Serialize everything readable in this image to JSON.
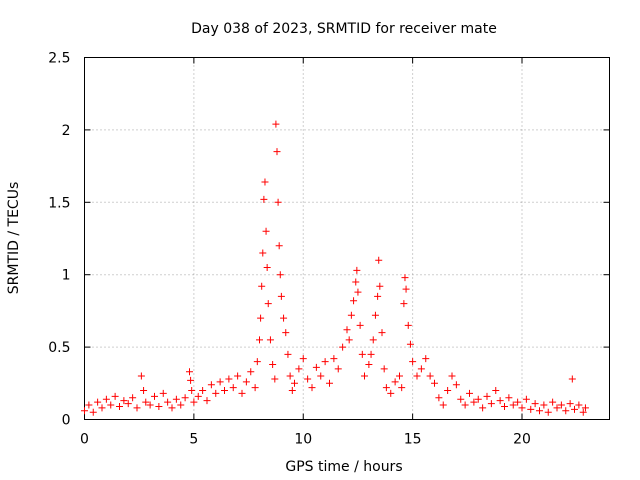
{
  "chart_data": {
    "type": "scatter",
    "title": "Day 038 of 2023, SRMTID for receiver mate",
    "xlabel": "GPS time / hours",
    "ylabel": "SRMTID / TECUs",
    "xlim": [
      0,
      24
    ],
    "ylim": [
      0,
      2.5
    ],
    "xticks": [
      {
        "value": 0,
        "label": "0"
      },
      {
        "value": 5,
        "label": "5"
      },
      {
        "value": 10,
        "label": "10"
      },
      {
        "value": 15,
        "label": "15"
      },
      {
        "value": 20,
        "label": "20"
      }
    ],
    "yticks": [
      {
        "value": 0,
        "label": "0"
      },
      {
        "value": 0.5,
        "label": "0.5"
      },
      {
        "value": 1,
        "label": "1"
      },
      {
        "value": 1.5,
        "label": "1.5"
      },
      {
        "value": 2,
        "label": "2"
      },
      {
        "value": 2.5,
        "label": "2.5"
      }
    ],
    "grid": true,
    "marker": "+",
    "series": [
      {
        "name": "SRMTID",
        "color": "#ff0000",
        "points": [
          [
            0.0,
            0.06
          ],
          [
            0.2,
            0.1
          ],
          [
            0.4,
            0.05
          ],
          [
            0.6,
            0.12
          ],
          [
            0.8,
            0.08
          ],
          [
            1.0,
            0.14
          ],
          [
            1.2,
            0.1
          ],
          [
            1.4,
            0.16
          ],
          [
            1.6,
            0.09
          ],
          [
            1.8,
            0.13
          ],
          [
            2.0,
            0.11
          ],
          [
            2.2,
            0.15
          ],
          [
            2.4,
            0.08
          ],
          [
            2.6,
            0.3
          ],
          [
            2.7,
            0.2
          ],
          [
            2.8,
            0.12
          ],
          [
            3.0,
            0.1
          ],
          [
            3.2,
            0.16
          ],
          [
            3.4,
            0.09
          ],
          [
            3.6,
            0.18
          ],
          [
            3.8,
            0.12
          ],
          [
            4.0,
            0.08
          ],
          [
            4.2,
            0.14
          ],
          [
            4.4,
            0.1
          ],
          [
            4.6,
            0.15
          ],
          [
            4.8,
            0.33
          ],
          [
            4.85,
            0.27
          ],
          [
            4.9,
            0.2
          ],
          [
            5.0,
            0.12
          ],
          [
            5.2,
            0.16
          ],
          [
            5.4,
            0.2
          ],
          [
            5.6,
            0.13
          ],
          [
            5.8,
            0.24
          ],
          [
            6.0,
            0.18
          ],
          [
            6.2,
            0.26
          ],
          [
            6.4,
            0.2
          ],
          [
            6.6,
            0.28
          ],
          [
            6.8,
            0.22
          ],
          [
            7.0,
            0.3
          ],
          [
            7.2,
            0.18
          ],
          [
            7.4,
            0.26
          ],
          [
            7.6,
            0.33
          ],
          [
            7.8,
            0.22
          ],
          [
            7.9,
            0.4
          ],
          [
            8.0,
            0.55
          ],
          [
            8.05,
            0.7
          ],
          [
            8.1,
            0.92
          ],
          [
            8.15,
            1.15
          ],
          [
            8.2,
            1.52
          ],
          [
            8.25,
            1.64
          ],
          [
            8.3,
            1.3
          ],
          [
            8.35,
            1.05
          ],
          [
            8.4,
            0.8
          ],
          [
            8.5,
            0.55
          ],
          [
            8.6,
            0.38
          ],
          [
            8.7,
            0.28
          ],
          [
            8.75,
            2.04
          ],
          [
            8.8,
            1.85
          ],
          [
            8.85,
            1.5
          ],
          [
            8.9,
            1.2
          ],
          [
            8.95,
            1.0
          ],
          [
            9.0,
            0.85
          ],
          [
            9.1,
            0.7
          ],
          [
            9.2,
            0.6
          ],
          [
            9.3,
            0.45
          ],
          [
            9.4,
            0.3
          ],
          [
            9.5,
            0.2
          ],
          [
            9.6,
            0.25
          ],
          [
            9.8,
            0.35
          ],
          [
            10.0,
            0.42
          ],
          [
            10.2,
            0.28
          ],
          [
            10.4,
            0.22
          ],
          [
            10.6,
            0.36
          ],
          [
            10.8,
            0.3
          ],
          [
            11.0,
            0.4
          ],
          [
            11.2,
            0.25
          ],
          [
            11.4,
            0.42
          ],
          [
            11.6,
            0.35
          ],
          [
            11.8,
            0.5
          ],
          [
            12.0,
            0.62
          ],
          [
            12.1,
            0.55
          ],
          [
            12.2,
            0.72
          ],
          [
            12.3,
            0.82
          ],
          [
            12.4,
            0.95
          ],
          [
            12.45,
            1.03
          ],
          [
            12.5,
            0.88
          ],
          [
            12.6,
            0.65
          ],
          [
            12.7,
            0.45
          ],
          [
            12.8,
            0.3
          ],
          [
            13.0,
            0.38
          ],
          [
            13.1,
            0.45
          ],
          [
            13.2,
            0.55
          ],
          [
            13.3,
            0.72
          ],
          [
            13.4,
            0.85
          ],
          [
            13.45,
            1.1
          ],
          [
            13.5,
            0.92
          ],
          [
            13.6,
            0.6
          ],
          [
            13.7,
            0.35
          ],
          [
            13.8,
            0.22
          ],
          [
            14.0,
            0.18
          ],
          [
            14.2,
            0.26
          ],
          [
            14.4,
            0.3
          ],
          [
            14.5,
            0.22
          ],
          [
            14.6,
            0.8
          ],
          [
            14.65,
            0.98
          ],
          [
            14.7,
            0.9
          ],
          [
            14.8,
            0.65
          ],
          [
            14.9,
            0.52
          ],
          [
            15.0,
            0.4
          ],
          [
            15.2,
            0.3
          ],
          [
            15.4,
            0.35
          ],
          [
            15.6,
            0.42
          ],
          [
            15.8,
            0.3
          ],
          [
            16.0,
            0.25
          ],
          [
            16.2,
            0.15
          ],
          [
            16.4,
            0.1
          ],
          [
            16.6,
            0.2
          ],
          [
            16.8,
            0.3
          ],
          [
            17.0,
            0.24
          ],
          [
            17.2,
            0.14
          ],
          [
            17.4,
            0.1
          ],
          [
            17.6,
            0.18
          ],
          [
            17.8,
            0.12
          ],
          [
            18.0,
            0.14
          ],
          [
            18.2,
            0.08
          ],
          [
            18.4,
            0.16
          ],
          [
            18.6,
            0.11
          ],
          [
            18.8,
            0.2
          ],
          [
            19.0,
            0.13
          ],
          [
            19.2,
            0.09
          ],
          [
            19.4,
            0.15
          ],
          [
            19.6,
            0.1
          ],
          [
            19.8,
            0.12
          ],
          [
            20.0,
            0.08
          ],
          [
            20.2,
            0.14
          ],
          [
            20.4,
            0.07
          ],
          [
            20.6,
            0.11
          ],
          [
            20.8,
            0.06
          ],
          [
            21.0,
            0.1
          ],
          [
            21.2,
            0.05
          ],
          [
            21.4,
            0.12
          ],
          [
            21.6,
            0.08
          ],
          [
            21.8,
            0.1
          ],
          [
            22.0,
            0.06
          ],
          [
            22.2,
            0.11
          ],
          [
            22.3,
            0.28
          ],
          [
            22.4,
            0.07
          ],
          [
            22.6,
            0.1
          ],
          [
            22.8,
            0.05
          ],
          [
            22.9,
            0.08
          ]
        ]
      }
    ]
  }
}
